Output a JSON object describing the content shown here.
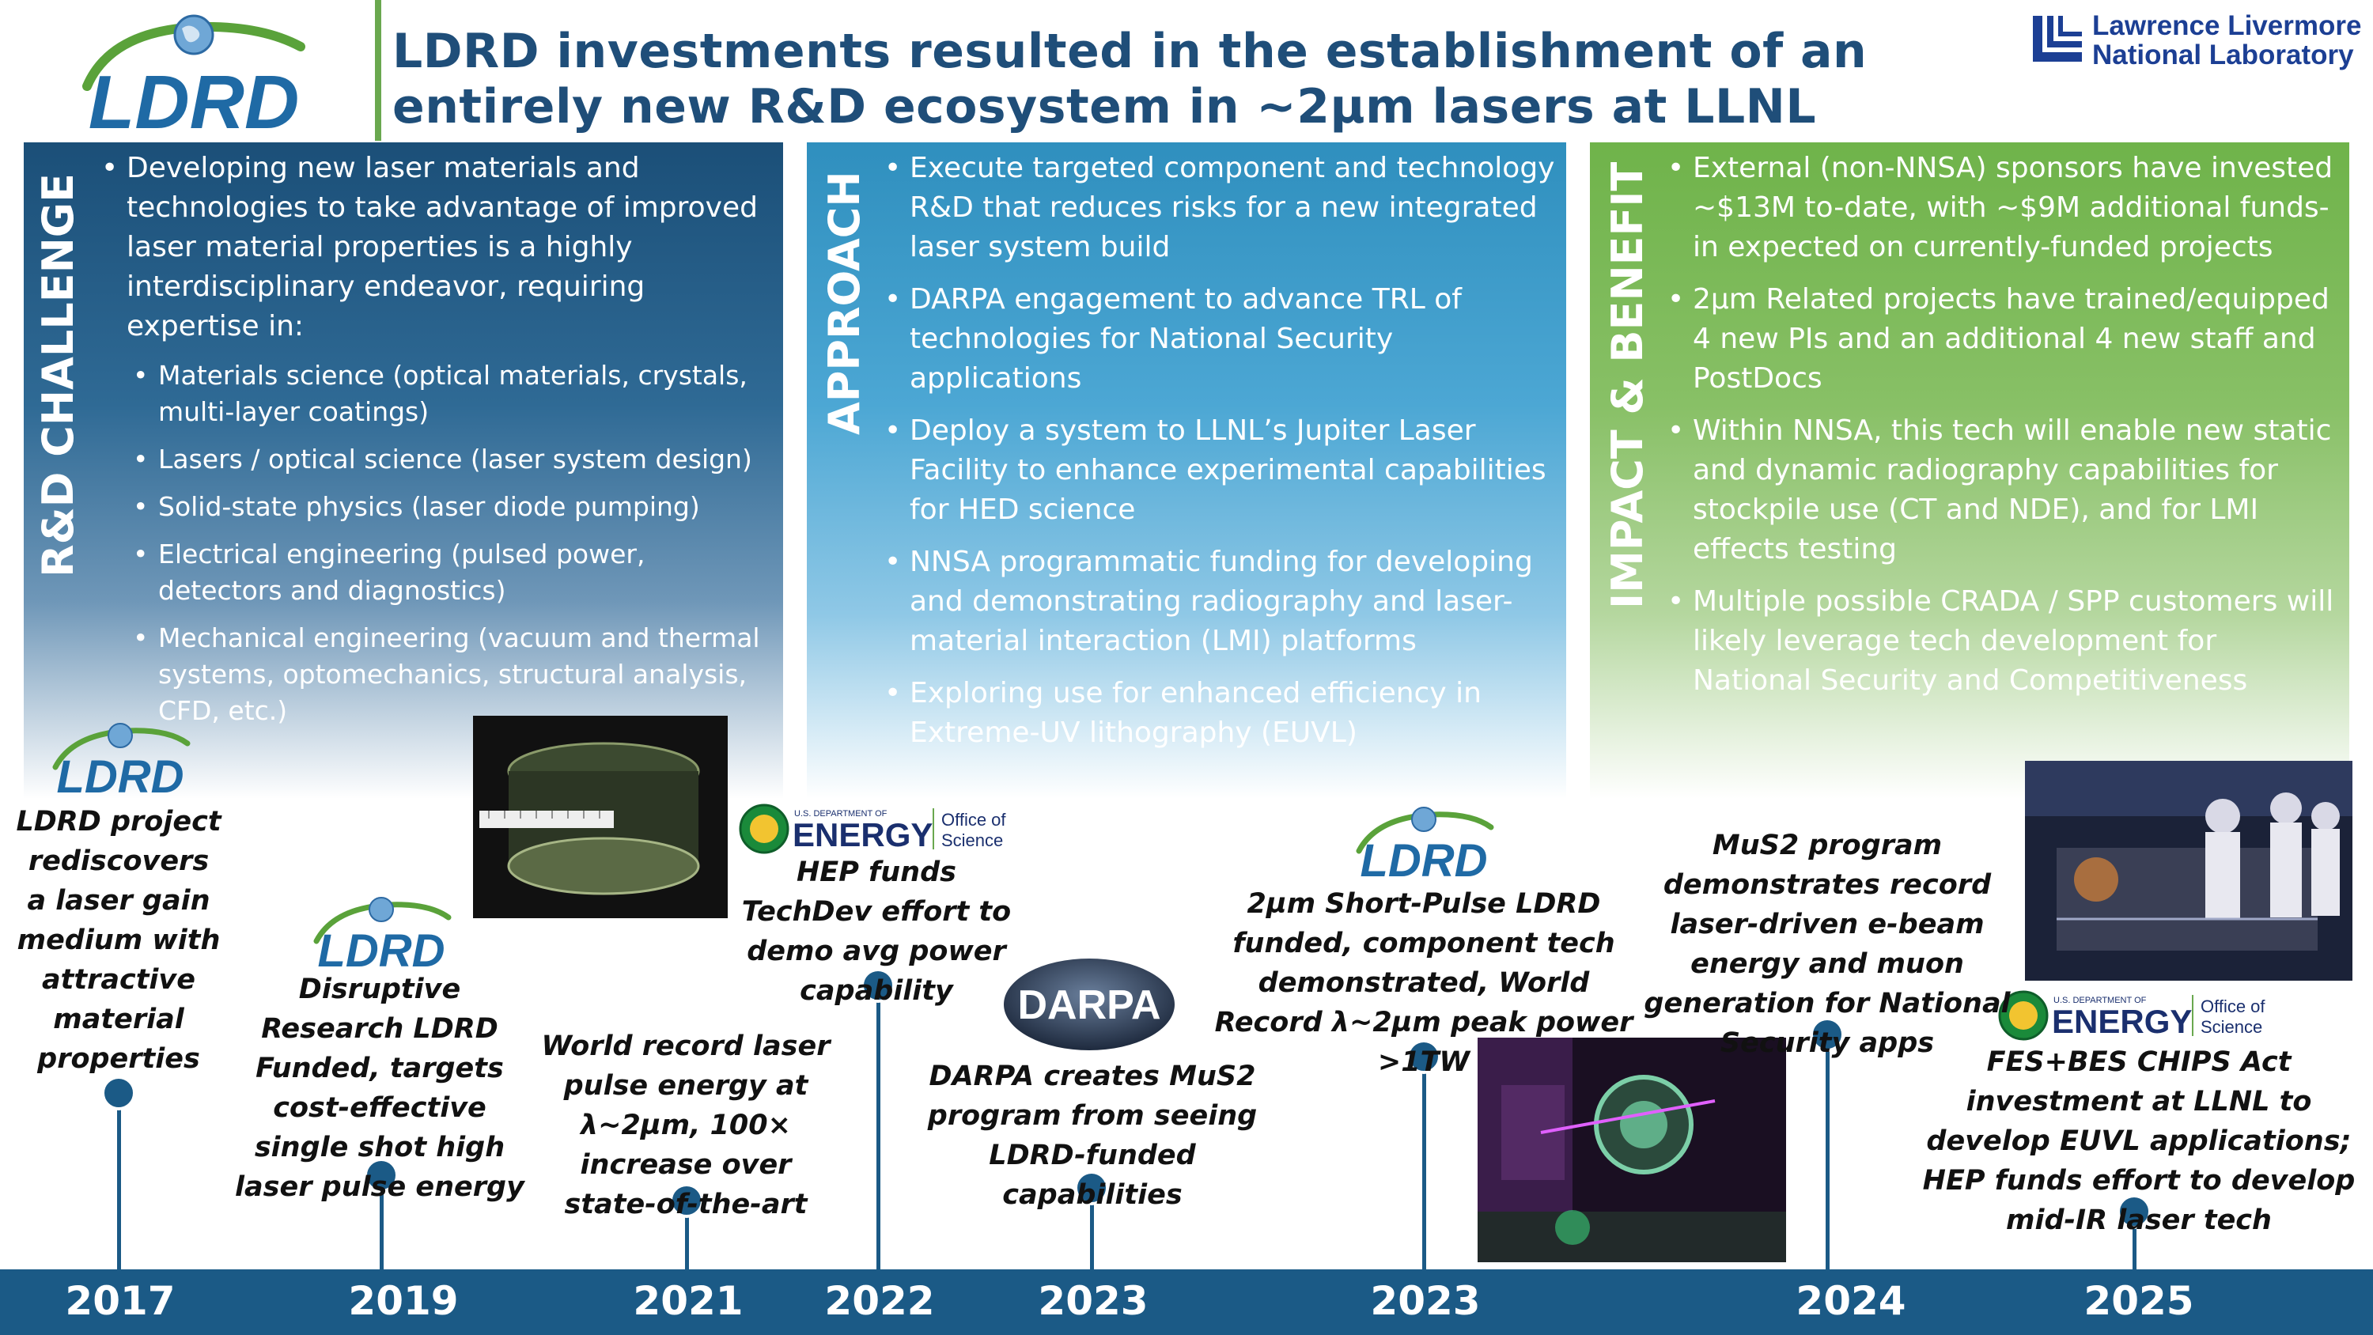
{
  "header": {
    "title_line1": "LDRD investments resulted in the establishment of an",
    "title_line2": "entirely new R&D ecosystem in ~2µm lasers at LLNL",
    "ldrd_logo_text": "LDRD",
    "llnl_line1": "Lawrence Livermore",
    "llnl_line2": "National Laboratory"
  },
  "colors": {
    "title": "#1f4e79",
    "challenge_panel": "#1b4f78",
    "approach_panel": "#2f8fbe",
    "impact_panel": "#6fb34a",
    "timeline": "#1b5a86"
  },
  "panels": {
    "challenge": {
      "label": "R&D CHALLENGE",
      "intro": "Developing new laser materials and technologies to take advantage of improved laser material properties is a highly interdisciplinary endeavor, requiring expertise in:",
      "subitems": [
        "Materials science (optical materials, crystals, multi-layer coatings)",
        "Lasers / optical science (laser system design)",
        "Solid-state physics (laser diode pumping)",
        "Electrical engineering (pulsed power, detectors and diagnostics)",
        "Mechanical engineering (vacuum and thermal systems, optomechanics, structural analysis, CFD, etc.)"
      ]
    },
    "approach": {
      "label": "APPROACH",
      "items": [
        "Execute targeted component and technology R&D that reduces risks for a new integrated laser system build",
        "DARPA engagement to advance TRL of technologies for National Security applications",
        "Deploy a system to LLNL’s Jupiter Laser Facility to enhance experimental capabilities for HED science",
        "NNSA programmatic funding for developing and demonstrating radiography and laser-material interaction (LMI) platforms",
        "Exploring use for enhanced efficiency in Extreme-UV lithography (EUVL)"
      ]
    },
    "impact": {
      "label": "IMPACT & BENEFIT",
      "items": [
        "External (non-NNSA) sponsors have invested ~$13M to-date, with ~$9M additional funds-in expected on currently-funded projects",
        "2µm Related projects have trained/equipped 4 new PIs and an additional 4 new staff and PostDocs",
        "Within NNSA, this tech will enable new static and dynamic radiography capabilities for stockpile use (CT and NDE), and for LMI effects testing",
        "Multiple possible CRADA / SPP customers will likely leverage tech development for National Security and Competitiveness"
      ]
    }
  },
  "logos": {
    "ldrd": "LDRD",
    "doe_small": "U.S. DEPARTMENT OF",
    "doe_big": "ENERGY",
    "doe_office1": "Office of",
    "doe_office2": "Science",
    "darpa": "DARPA"
  },
  "timeline": {
    "years": [
      "2017",
      "2019",
      "2021",
      "2022",
      "2023",
      "2023",
      "2024",
      "2025"
    ],
    "events": [
      "LDRD project rediscovers a laser gain medium with attractive material properties",
      "Disruptive Research LDRD Funded, targets cost-effective single shot high laser pulse energy",
      "World record laser pulse energy at λ~2µm, 100× increase over state-of-the-art",
      "HEP funds TechDev effort to demo avg power capability",
      "DARPA creates MuS2 program from seeing LDRD-funded capabilities",
      "2µm Short-Pulse LDRD funded, component tech demonstrated, World Record λ~2µm peak power >1TW",
      "MuS2 program demonstrates record laser-driven e-beam energy and muon generation for National Security apps",
      "FES+BES CHIPS Act investment at LLNL to develop EUVL applications; HEP funds effort to develop mid-IR laser tech"
    ]
  },
  "icons": [
    "globe-icon",
    "doe-seal-icon",
    "llnl-emblem-icon"
  ]
}
